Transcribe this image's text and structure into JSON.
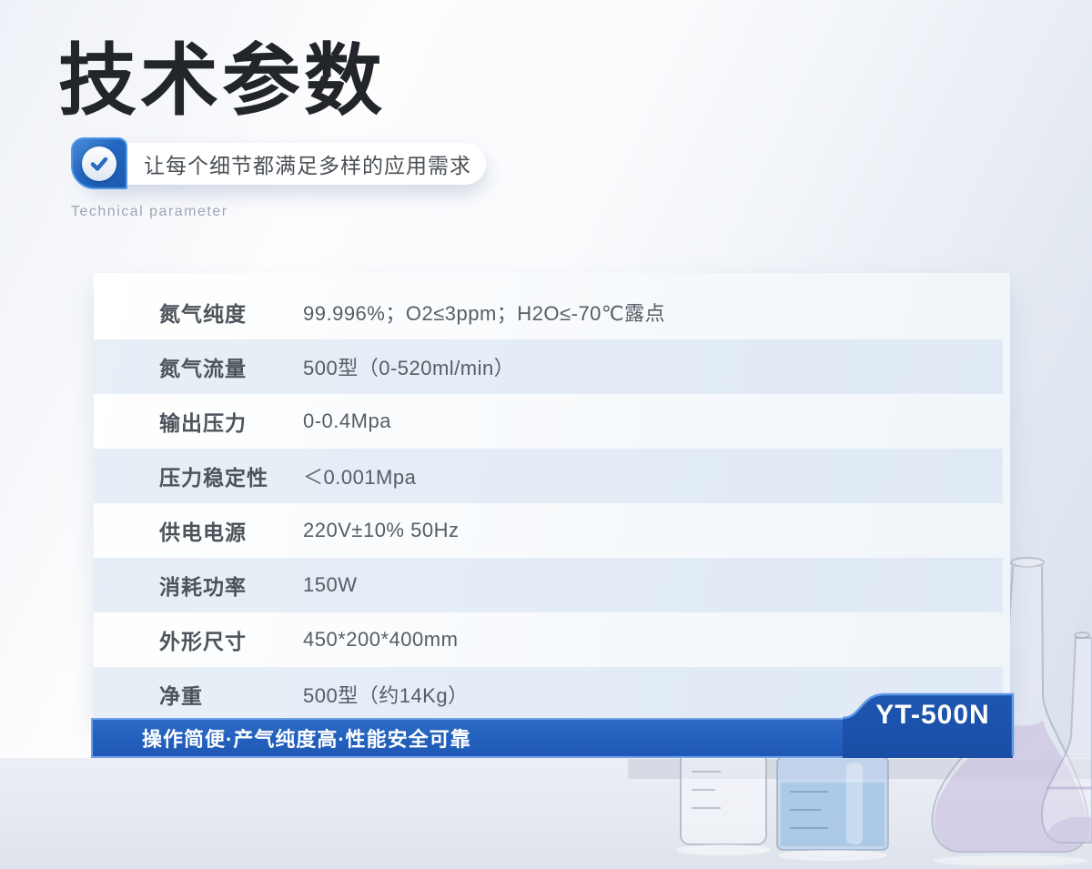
{
  "header": {
    "title": "技术参数",
    "tagline": "让每个细节都满足多样的应用需求",
    "subtitle": "Technical parameter"
  },
  "table": {
    "rows": [
      {
        "label": "氮气纯度",
        "value": "99.996%；O2≤3ppm；H2O≤-70℃露点"
      },
      {
        "label": "氮气流量",
        "value": "500型（0-520ml/min）"
      },
      {
        "label": "输出压力",
        "value": "0-0.4Mpa"
      },
      {
        "label": "压力稳定性",
        "value": "＜0.001Mpa"
      },
      {
        "label": "供电电源",
        "value": "220V±10% 50Hz"
      },
      {
        "label": "消耗功率",
        "value": "150W"
      },
      {
        "label": "外形尺寸",
        "value": "450*200*400mm"
      },
      {
        "label": "净重",
        "value": "500型（约14Kg）"
      }
    ]
  },
  "footer": {
    "slogan": "操作简便·产气纯度高·性能安全可靠",
    "model": "YT-500N"
  },
  "icons": {
    "check": "check-icon"
  },
  "colors": {
    "accent_blue": "#2260bd",
    "badge_blue": "#1d52a9",
    "bar_border_blue": "#6fa0e8",
    "check_square_blue": "#2366c0",
    "title_text": "#22252a",
    "label_text": "#4d535b",
    "value_text": "#575d65",
    "subtitle_text": "#9ba6b3",
    "even_row_tint": "#dde6f1"
  }
}
